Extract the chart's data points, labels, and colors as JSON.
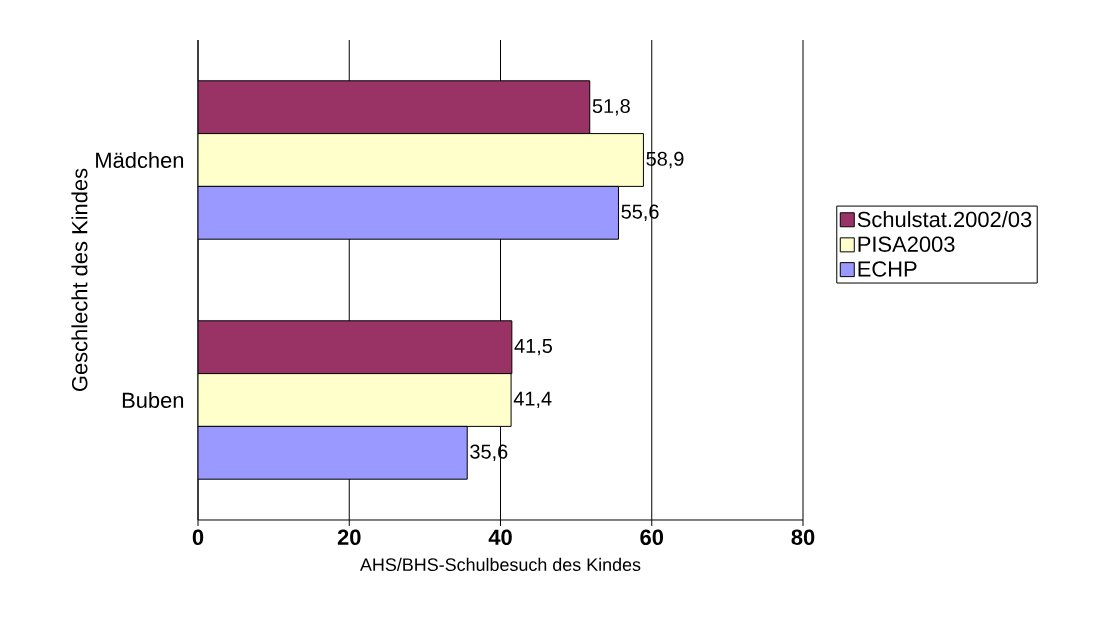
{
  "chart_data": {
    "type": "bar",
    "orientation": "horizontal",
    "categories": [
      "Mädchen",
      "Buben"
    ],
    "series": [
      {
        "name": "Schulstat.2002/03",
        "color": "#993366",
        "values": [
          51.8,
          41.5
        ],
        "value_labels": [
          "51,8",
          "41,5"
        ]
      },
      {
        "name": "PISA2003",
        "color": "#ffffcc",
        "values": [
          58.9,
          41.4
        ],
        "value_labels": [
          "58,9",
          "41,4"
        ]
      },
      {
        "name": "ECHP",
        "color": "#9999ff",
        "values": [
          55.6,
          35.6
        ],
        "value_labels": [
          "55,6",
          "35,6"
        ]
      }
    ],
    "xlim": [
      0,
      80
    ],
    "xticks": [
      0,
      20,
      40,
      60,
      80
    ],
    "xlabel": "AHS/BHS-Schulbesuch des Kindes",
    "ylabel": "Geschlecht des Kindes",
    "grid": "x",
    "legend": "right"
  }
}
